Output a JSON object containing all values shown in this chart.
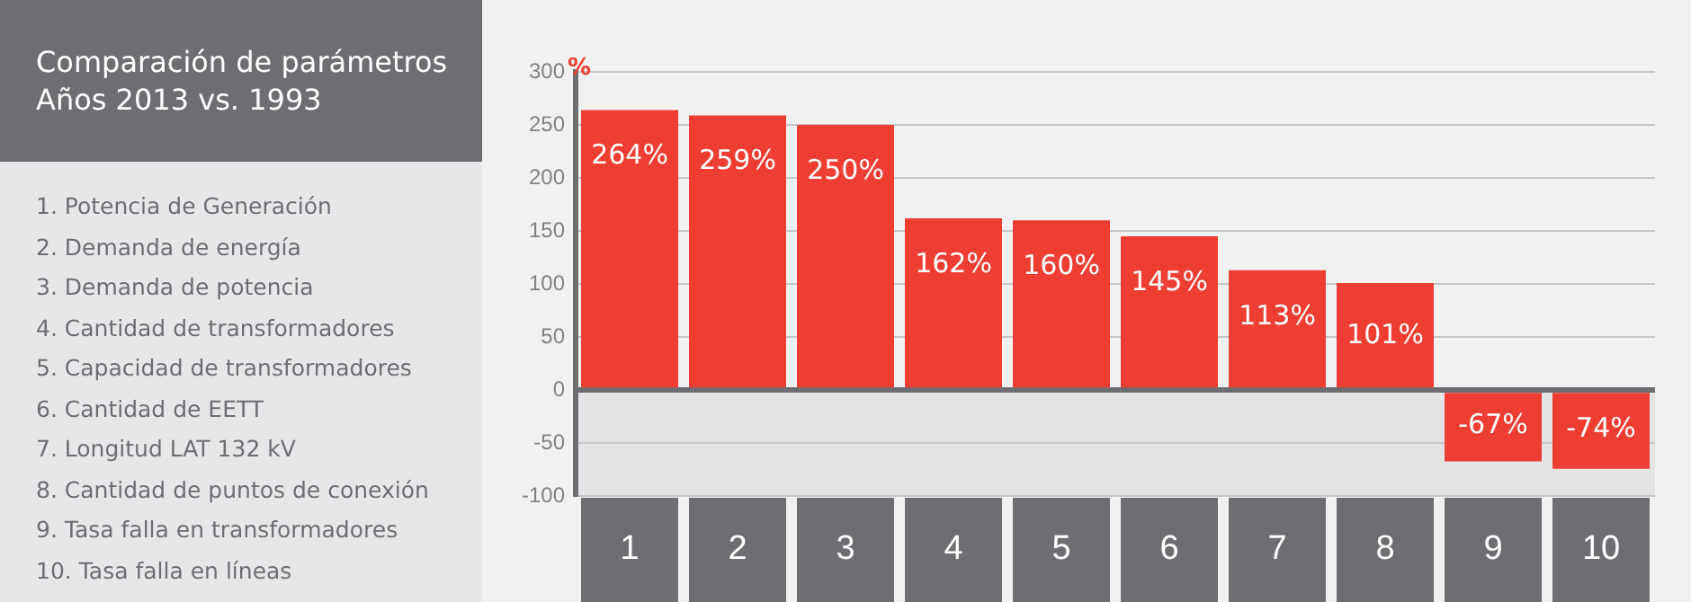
{
  "chart_data": {
    "type": "bar",
    "title": "Comparación de parámetros",
    "subtitle": "Años 2013 vs. 1993",
    "ylabel": "%",
    "categories": [
      "1",
      "2",
      "3",
      "4",
      "5",
      "6",
      "7",
      "8",
      "9",
      "10"
    ],
    "values": [
      264,
      259,
      250,
      162,
      160,
      145,
      113,
      101,
      -67,
      -74
    ],
    "value_labels": [
      "264%",
      "259%",
      "250%",
      "162%",
      "160%",
      "145%",
      "113%",
      "101%",
      "-67%",
      "-74%"
    ],
    "color": "#ee3e33",
    "ylim": [
      -100,
      300
    ],
    "yticks": [
      -100,
      -50,
      0,
      50,
      100,
      150,
      200,
      250,
      300
    ],
    "grid": "y",
    "legend": false,
    "annotations": [
      "1. Potencia de Generación",
      "2. Demanda de energía",
      "3. Demanda de potencia",
      "4. Cantidad de transformadores",
      "5. Capacidad de transformadores",
      "6. Cantidad de EETT",
      "7. Longitud LAT 132 kV",
      "8. Cantidad de puntos de conexión",
      "9. Tasa falla en transformadores",
      "10. Tasa falla en líneas"
    ]
  }
}
